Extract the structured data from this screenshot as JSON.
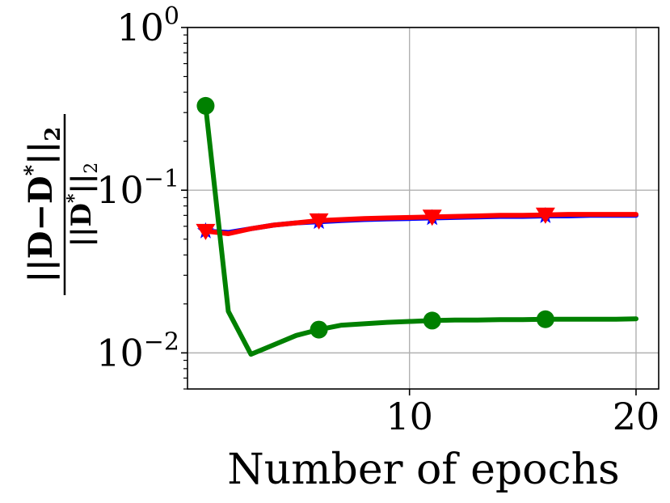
{
  "chart_data": {
    "type": "line",
    "xlabel": "Number of epochs",
    "ylabel": {
      "numerator_lhs": "||D−D",
      "numerator_sup": "*",
      "numerator_rhs": "||",
      "numerator_sub": "2",
      "denominator_lhs": "||D",
      "denominator_sup": "*",
      "denominator_rhs": "||",
      "denominator_sub": "2"
    },
    "yscale": "log",
    "xlim": [
      0.2,
      21
    ],
    "ylim": [
      0.006,
      1.0
    ],
    "grid": true,
    "x_ticks": [
      {
        "value": 10,
        "label": "10"
      },
      {
        "value": 20,
        "label": "20"
      }
    ],
    "y_ticks": [
      {
        "value": 1.0,
        "base": "10",
        "exp": "0"
      },
      {
        "value": 0.1,
        "base": "10",
        "exp": "−1"
      },
      {
        "value": 0.01,
        "base": "10",
        "exp": "−2"
      }
    ],
    "series": [
      {
        "color": "#0000ff",
        "marker": "star",
        "x": [
          1,
          2,
          3,
          4,
          5,
          6,
          7,
          8,
          9,
          10,
          11,
          12,
          13,
          14,
          15,
          16,
          17,
          18,
          19,
          20
        ],
        "y": [
          0.056,
          0.055,
          0.058,
          0.061,
          0.063,
          0.064,
          0.065,
          0.066,
          0.0665,
          0.067,
          0.0675,
          0.068,
          0.0685,
          0.069,
          0.069,
          0.0695,
          0.0695,
          0.07,
          0.07,
          0.07
        ],
        "marker_x": [
          1,
          6,
          11,
          16
        ]
      },
      {
        "color": "#ff0000",
        "marker": "triangle-down",
        "x": [
          1,
          2,
          3,
          4,
          5,
          6,
          7,
          8,
          9,
          10,
          11,
          12,
          13,
          14,
          15,
          16,
          17,
          18,
          19,
          20
        ],
        "y": [
          0.056,
          0.054,
          0.058,
          0.061,
          0.063,
          0.065,
          0.066,
          0.067,
          0.0675,
          0.068,
          0.0685,
          0.069,
          0.0695,
          0.07,
          0.07,
          0.0705,
          0.071,
          0.071,
          0.071,
          0.071
        ],
        "marker_x": [
          1,
          6,
          11,
          16
        ]
      },
      {
        "color": "#008000",
        "marker": "circle",
        "x": [
          1,
          2,
          3,
          4,
          5,
          6,
          7,
          8,
          9,
          10,
          11,
          12,
          13,
          14,
          15,
          16,
          17,
          18,
          19,
          20
        ],
        "y": [
          0.33,
          0.018,
          0.0098,
          0.0112,
          0.0128,
          0.0139,
          0.0148,
          0.0151,
          0.0154,
          0.0156,
          0.0158,
          0.0159,
          0.0159,
          0.016,
          0.016,
          0.0161,
          0.0161,
          0.0161,
          0.0161,
          0.0162
        ],
        "marker_x": [
          1,
          6,
          11,
          16
        ]
      }
    ]
  }
}
